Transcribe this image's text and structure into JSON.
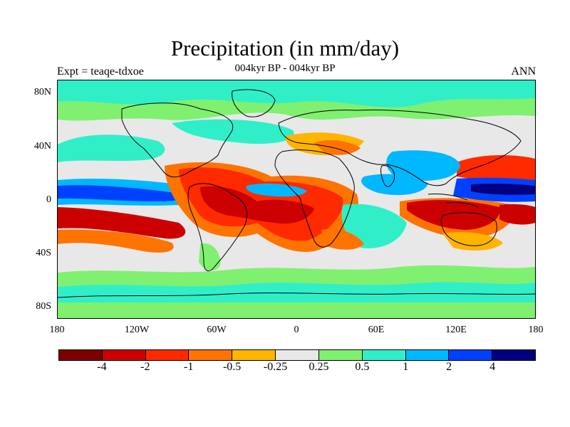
{
  "title": "Precipitation (in mm/day)",
  "subtitle": "004kyr BP - 004kyr BP",
  "left_label": "Expt = teaqe-tdxoe",
  "right_label": "ANN",
  "lat_ticks": [
    "80N",
    "40N",
    "0",
    "40S",
    "80S"
  ],
  "lon_ticks": [
    "180",
    "120W",
    "60W",
    "0",
    "60E",
    "120E",
    "180"
  ],
  "legend": {
    "labels": [
      "-4",
      "-2",
      "-1",
      "-0.5",
      "-0.25",
      "0.25",
      "0.5",
      "1",
      "2",
      "4"
    ],
    "colors": [
      "#7d0000",
      "#cc0000",
      "#ff2a00",
      "#ff7300",
      "#ffb400",
      "#e8e8e8",
      "#80f070",
      "#30efc8",
      "#00b8ff",
      "#0040ff",
      "#000080"
    ]
  },
  "colors": {
    "land_line": "#000000",
    "background_field": "#e8e8e8"
  }
}
